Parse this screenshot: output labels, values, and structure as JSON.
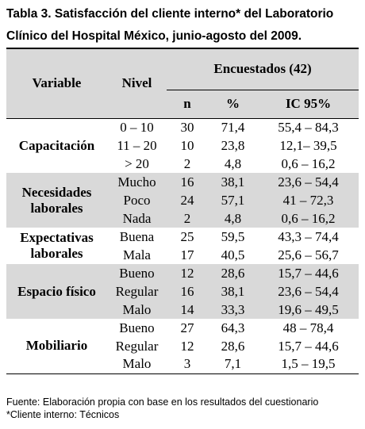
{
  "title": [
    "Tabla 3.  Satisfacción del cliente interno* del Laboratorio",
    "Clínico del Hospital México, junio-agosto del 2009."
  ],
  "table": {
    "headers": {
      "variable": "Variable",
      "nivel": "Nivel",
      "group": "Encuestados (42)",
      "n": "n",
      "pct": "%",
      "ic": "IC 95%"
    },
    "groups": [
      {
        "variable": "Capacitación",
        "rows": [
          [
            "0 – 10",
            30,
            "71,4",
            "55,4 – 84,3"
          ],
          [
            "11 – 20",
            10,
            "23,8",
            "12,1– 39,5"
          ],
          [
            "> 20",
            2,
            "4,8",
            "0,6 – 16,2"
          ]
        ]
      },
      {
        "variable": "Necesidades laborales",
        "rows": [
          [
            "Mucho",
            16,
            "38,1",
            "23,6 – 54,4"
          ],
          [
            "Poco",
            24,
            "57,1",
            "41 – 72,3"
          ],
          [
            "Nada",
            2,
            "4,8",
            "0,6 – 16,2"
          ]
        ]
      },
      {
        "variable": "Expectativas laborales",
        "rows": [
          [
            "Buena",
            25,
            "59,5",
            "43,3 – 74,4"
          ],
          [
            "Mala",
            17,
            "40,5",
            "25,6 – 56,7"
          ]
        ]
      },
      {
        "variable": "Espacio físico",
        "rows": [
          [
            "Bueno",
            12,
            "28,6",
            "15,7 – 44,6"
          ],
          [
            "Regular",
            16,
            "38,1",
            "23,6 – 54,4"
          ],
          [
            "Malo",
            14,
            "33,3",
            "19,6 – 49,5"
          ]
        ]
      },
      {
        "variable": "Mobiliario",
        "rows": [
          [
            "Bueno",
            27,
            "64,3",
            "48 – 78,4"
          ],
          [
            "Regular",
            12,
            "28,6",
            "15,7 – 44,6"
          ],
          [
            "Malo",
            3,
            "7,1",
            "1,5 – 19,5"
          ]
        ]
      }
    ]
  },
  "footer": [
    "Fuente: Elaboración propia con base en los resultados del cuestionario",
    "*Cliente interno: Técnicos"
  ]
}
